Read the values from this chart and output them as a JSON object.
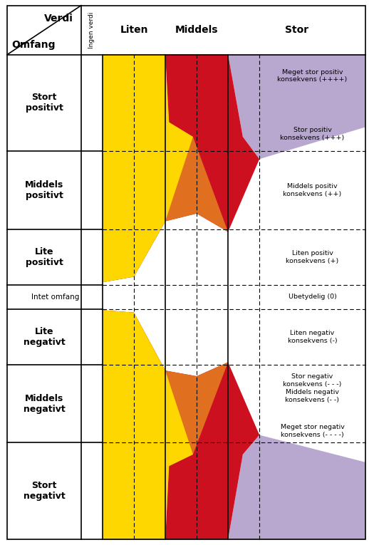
{
  "fig_width": 5.18,
  "fig_height": 7.65,
  "dpi": 100,
  "background_color": "#ffffff",
  "colors": {
    "yellow": "#FFD700",
    "orange": "#E07020",
    "red": "#CC1020",
    "purple": "#B8A8D0",
    "white": "#FFFFFF"
  },
  "col_headers": [
    "Liten",
    "Middels",
    "Stor"
  ],
  "row_labels": [
    "Stort\npositivt",
    "Middels\npositivt",
    "Lite\npositivt",
    "Intet omfang",
    "Lite\nnegativt",
    "Middels\nnegativt",
    "Stort\nnegativt"
  ],
  "consequence_labels": [
    "Meget stor positiv\nkonsekvens (++++)",
    "Stor positiv\nkonsekvens (+++)",
    "Middels positiv\nkonsekvens (++)",
    "Liten positiv\nkonsekvens (+)",
    "Ubetydelig (0)",
    "Liten negativ\nkonsekvens (-)",
    "Middels negativ\nkonsekvens (- -)",
    "Stor negativ\nkonsekvens (- - -)",
    "Meget stor negativ\nkonsekvens (- - - -)"
  ]
}
